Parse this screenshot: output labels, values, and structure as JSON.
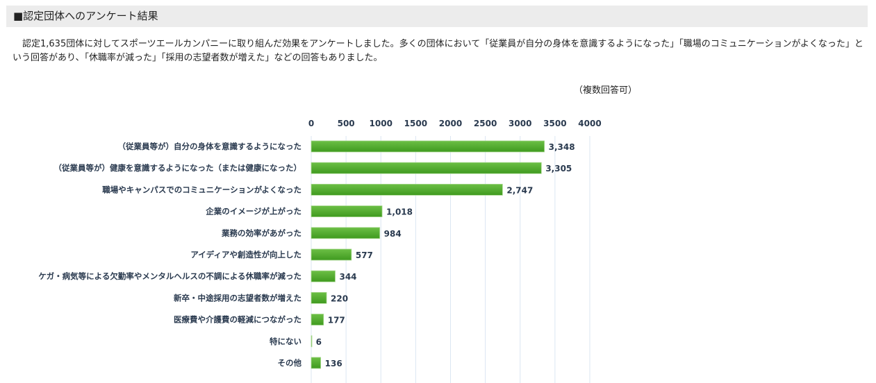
{
  "header": {
    "title": "■認定団体へのアンケート結果"
  },
  "description": "認定1,635団体に対してスポーツエールカンパニーに取り組んだ効果をアンケートしました。多くの団体において「従業員が自分の身体を意識するようになった」「職場のコミュニケーションがよくなった」という回答があり、「休職率が減った」「採用の志望者数が増えた」などの回答もありました。",
  "note": "（複数回答可）",
  "chart_data": {
    "type": "bar",
    "orientation": "horizontal",
    "categories": [
      "（従業員等が）自分の身体を意識するようになった",
      "（従業員等が）健康を意識するようになった（または健康になった）",
      "職場やキャンパスでのコミュニケーションがよくなった",
      "企業のイメージが上がった",
      "業務の効率があがった",
      "アイディアや創造性が向上した",
      "ケガ・病気等による欠勤率やメンタルヘルスの不調による休職率が減った",
      "新卒・中途採用の志望者数が増えた",
      "医療費や介護費の軽減につながった",
      "特にない",
      "その他"
    ],
    "values": [
      3348,
      3305,
      2747,
      1018,
      984,
      577,
      344,
      220,
      177,
      6,
      136
    ],
    "value_labels": [
      "3,348",
      "3,305",
      "2,747",
      "1,018",
      "984",
      "577",
      "344",
      "220",
      "177",
      "6",
      "136"
    ],
    "xlim": [
      0,
      4000
    ],
    "xticks": [
      "0",
      "500",
      "1000",
      "1500",
      "2000",
      "2500",
      "3000",
      "3500",
      "4000"
    ],
    "grid": true,
    "bar_color": "#4aa62a"
  }
}
